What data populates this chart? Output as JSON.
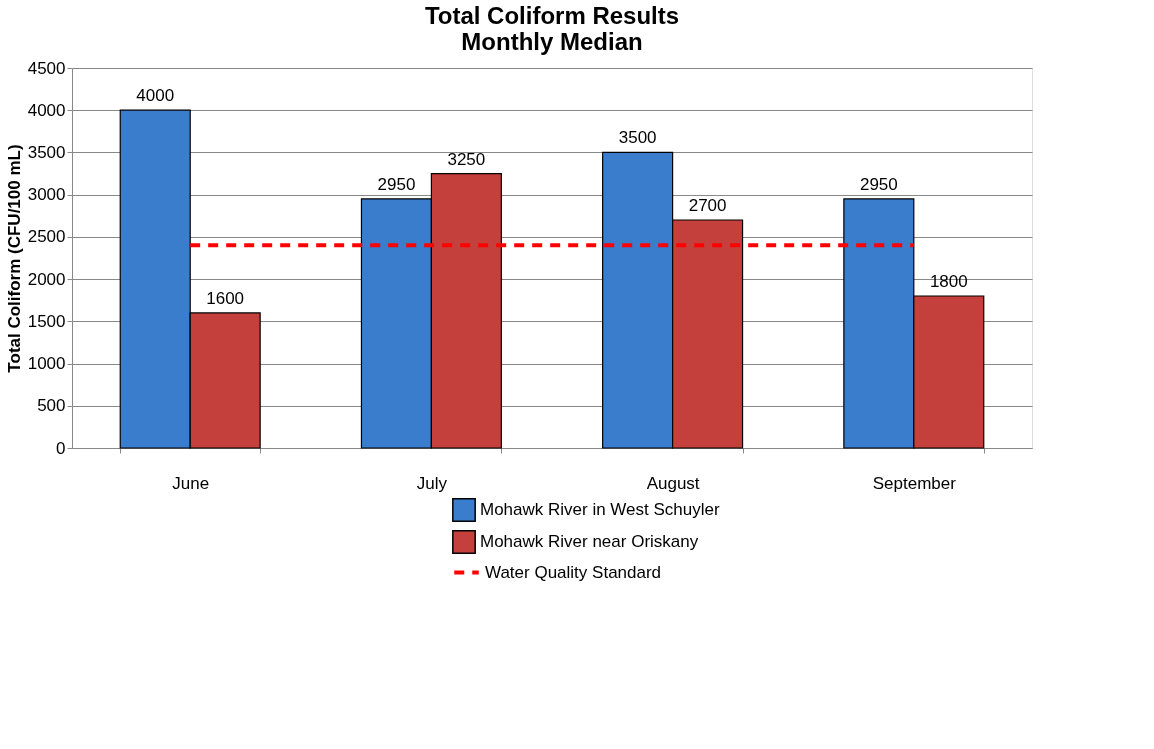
{
  "chart_data": {
    "type": "bar",
    "title": "Total Coliform Results\nMonthly Median",
    "ylabel": "Total Coliform (CFU/100 mL)",
    "categories": [
      "June",
      "July",
      "August",
      "September"
    ],
    "series": [
      {
        "name": "Mohawk River in West Schuyler",
        "color": "#3a7dcc",
        "values": [
          4000,
          2950,
          3500,
          2950
        ],
        "value_labels": [
          "4000",
          "2950",
          "3500",
          "2950"
        ]
      },
      {
        "name": "Mohawk River near Oriskany",
        "color": "#c4403c",
        "values": [
          1600,
          3250,
          2700,
          1800
        ],
        "value_labels": [
          "1600",
          "3250",
          "2700",
          "1800"
        ]
      },
      {
        "name": "Water Quality Standard",
        "type": "line",
        "color": "#ff0000",
        "line_style": "dashed",
        "values": [
          2400,
          2400,
          2400,
          2400
        ]
      }
    ],
    "ylim": [
      0,
      4500
    ],
    "yticks": [
      0,
      500,
      1000,
      1500,
      2000,
      2500,
      3000,
      3500,
      4000,
      4500
    ],
    "grid": "y",
    "legend": "bottom"
  }
}
